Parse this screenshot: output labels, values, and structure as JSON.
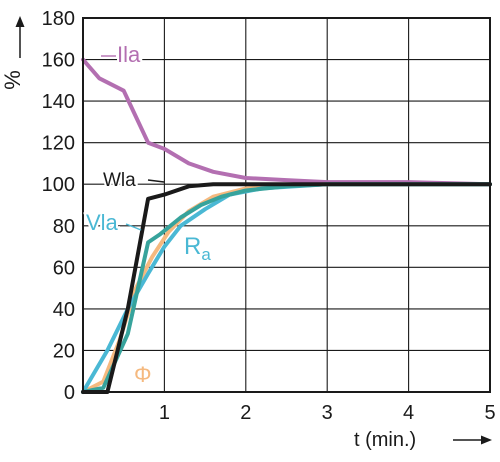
{
  "chart_data": {
    "type": "line",
    "title": "",
    "xlabel": "t (min.)",
    "ylabel": "%",
    "xlim": [
      0,
      5
    ],
    "ylim": [
      0,
      180
    ],
    "x_ticks": [
      "1",
      "2",
      "3",
      "4",
      "5"
    ],
    "y_ticks": [
      "0",
      "20",
      "40",
      "60",
      "80",
      "100",
      "120",
      "140",
      "160",
      "180"
    ],
    "grid": true,
    "legend": "none",
    "series": [
      {
        "name": "Ila",
        "color": "#b36fb1",
        "label_color": "#b36fb1",
        "label_parts": [
          "Ila",
          ""
        ],
        "x": [
          0,
          0.2,
          0.5,
          0.8,
          1.0,
          1.3,
          1.6,
          2.0,
          2.5,
          3.0,
          4.0,
          5.0
        ],
        "y": [
          160,
          151,
          145,
          120,
          117,
          110,
          106,
          103,
          102,
          101,
          101,
          100
        ]
      },
      {
        "name": "Wla",
        "color": "#1a1a1a",
        "label_color": "#1a1a1a",
        "label_parts": [
          "Wla",
          ""
        ],
        "x": [
          0,
          0.3,
          0.55,
          0.8,
          1.0,
          1.3,
          1.6,
          2.0,
          3.0,
          4.0,
          5.0
        ],
        "y": [
          0,
          0,
          40,
          93,
          95,
          99,
          100,
          100,
          100,
          100,
          100
        ]
      },
      {
        "name": "Vla",
        "color": "#37a39c",
        "label_color": "#4ab8d4",
        "label_parts": [
          "Vla",
          ""
        ],
        "x": [
          0,
          0.25,
          0.55,
          0.8,
          0.95,
          1.2,
          1.45,
          1.7,
          2.0,
          2.5,
          3.0,
          4.0,
          5.0
        ],
        "y": [
          0,
          2,
          28,
          72,
          76,
          84,
          90,
          94,
          97,
          99,
          100,
          100,
          100
        ]
      },
      {
        "name": "Ra",
        "color": "#4ab8d4",
        "label_color": "#4ab8d4",
        "label_parts": [
          "R",
          "a"
        ],
        "x": [
          0,
          0.3,
          0.55,
          0.8,
          1.0,
          1.2,
          1.5,
          1.8,
          2.2,
          3.0,
          4.0,
          5.0
        ],
        "y": [
          0,
          20,
          40,
          57,
          70,
          80,
          88,
          95,
          98,
          100,
          100,
          100
        ]
      },
      {
        "name": "Φ",
        "color": "#f5b97f",
        "label_color": "#f5b97f",
        "label_parts": [
          "Φ",
          ""
        ],
        "x": [
          0,
          0.25,
          0.45,
          0.65,
          0.85,
          1.05,
          1.3,
          1.6,
          2.0,
          3.0,
          4.0,
          5.0
        ],
        "y": [
          0,
          5,
          25,
          50,
          65,
          77,
          87,
          94,
          98,
          100,
          100,
          100
        ]
      }
    ]
  }
}
